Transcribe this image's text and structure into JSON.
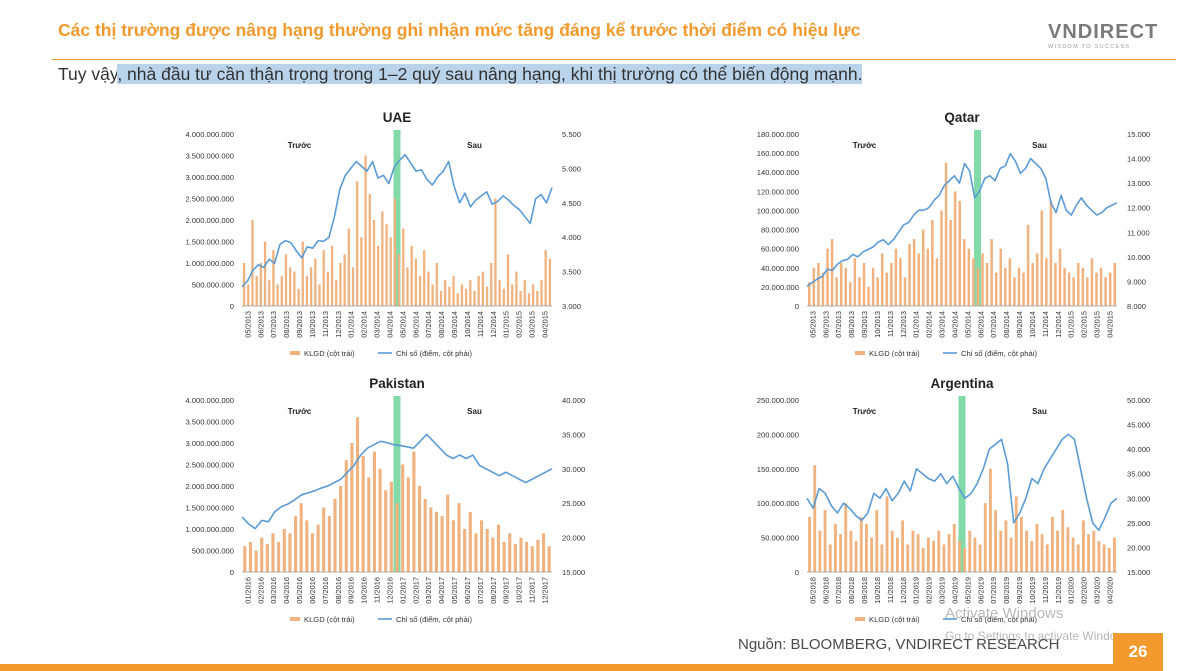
{
  "header": {
    "title": "Các thị trường được nâng hạng thường ghi nhận mức tăng đáng kể trước thời điểm có hiệu lực",
    "logo_main": "VNDIRECT",
    "logo_sub": "WISDOM TO SUCCESS"
  },
  "intro": {
    "prefix": "Tuy vậy",
    "highlighted": ", nhà đầu tư cần thận trọng trong 1–2 quý sau nâng hạng, khi thị trường có thể biến động mạnh."
  },
  "colors": {
    "accent": "#f29a2e",
    "bar": "#f0b27e",
    "line": "#5b9bd5",
    "band": "#6cd49a",
    "highlight": "#b9d3ea"
  },
  "footer": {
    "source": "Nguồn: BLOOMBERG, VNDIRECT RESEARCH",
    "page_number": "26",
    "watermark_line1": "Activate Windows",
    "watermark_line2": "Go to Settings to activate Windows."
  },
  "chart_data": [
    {
      "type": "bar+line",
      "title": "UAE",
      "left_axis": {
        "min": 0,
        "max": 4000000000,
        "step": 500000000,
        "ticks": [
          "0",
          "500.000.000",
          "1.000.000.000",
          "1.500.000.000",
          "2.000.000.000",
          "2.500.000.000",
          "3.000.000.000",
          "3.500.000.000",
          "4.000.000.000"
        ]
      },
      "right_axis": {
        "min": 3000,
        "max": 5500,
        "step": 500,
        "ticks": [
          "3.000",
          "3.500",
          "4.000",
          "4.500",
          "5.000",
          "5.500"
        ]
      },
      "x_ticks": [
        "05/2013",
        "06/2013",
        "07/2013",
        "08/2013",
        "09/2013",
        "10/2013",
        "11/2013",
        "12/2013",
        "01/2014",
        "02/2014",
        "03/2014",
        "04/2014",
        "05/2014",
        "06/2014",
        "07/2014",
        "08/2014",
        "09/2014",
        "10/2014",
        "11/2014",
        "12/2014",
        "01/2015",
        "02/2015",
        "03/2015",
        "04/2015"
      ],
      "before_label": "Trước",
      "after_label": "Sau",
      "event_position": 0.5,
      "legend": [
        "KLGD (cột trái)",
        "Chỉ số (điểm, cột phải)"
      ],
      "bars": [
        1000000000,
        500000000,
        2000000000,
        700000000,
        1000000000,
        1500000000,
        600000000,
        1300000000,
        500000000,
        700000000,
        1200000000,
        900000000,
        800000000,
        400000000,
        1500000000,
        700000000,
        900000000,
        1100000000,
        500000000,
        1300000000,
        800000000,
        1400000000,
        600000000,
        1000000000,
        1200000000,
        1800000000,
        900000000,
        2900000000,
        1600000000,
        3500000000,
        2600000000,
        2000000000,
        1400000000,
        2200000000,
        1900000000,
        1600000000,
        2500000000,
        1200000000,
        1800000000,
        900000000,
        1400000000,
        1100000000,
        700000000,
        1300000000,
        800000000,
        500000000,
        1000000000,
        350000000,
        600000000,
        450000000,
        700000000,
        300000000,
        500000000,
        400000000,
        600000000,
        350000000,
        700000000,
        800000000,
        450000000,
        1000000000,
        2500000000,
        600000000,
        400000000,
        1200000000,
        500000000,
        800000000,
        350000000,
        600000000,
        300000000,
        500000000,
        350000000,
        600000000,
        1300000000,
        1100000000
      ],
      "line": [
        3280,
        3360,
        3520,
        3600,
        3560,
        3680,
        3620,
        3900,
        3950,
        3920,
        3800,
        3700,
        3860,
        3840,
        3950,
        3940,
        4000,
        4300,
        4700,
        4900,
        5000,
        5100,
        5030,
        4960,
        5100,
        4860,
        4900,
        4780,
        5020,
        5120,
        5200,
        5080,
        4960,
        4980,
        4840,
        4760,
        4880,
        4960,
        5100,
        4740,
        4500,
        4640,
        4440,
        4540,
        4600,
        4660,
        4480,
        4520,
        4600,
        4540,
        4460,
        4400,
        4300,
        4200,
        4560,
        4620,
        4500,
        4720
      ],
      "event_index": 28
    },
    {
      "type": "bar+line",
      "title": "Qatar",
      "left_axis": {
        "min": 0,
        "max": 180000000,
        "step": 20000000,
        "ticks": [
          "0",
          "20.000.000",
          "40.000.000",
          "60.000.000",
          "80.000.000",
          "100.000.000",
          "120.000.000",
          "140.000.000",
          "160.000.000",
          "180.000.000"
        ]
      },
      "right_axis": {
        "min": 8000,
        "max": 15000,
        "step": 1000,
        "ticks": [
          "8.000",
          "9.000",
          "10.000",
          "11.000",
          "12.000",
          "13.000",
          "14.000",
          "15.000"
        ]
      },
      "x_ticks": [
        "05/2013",
        "06/2013",
        "07/2013",
        "08/2013",
        "09/2013",
        "10/2013",
        "11/2013",
        "12/2013",
        "01/2014",
        "02/2014",
        "03/2014",
        "04/2014",
        "05/2014",
        "06/2014",
        "07/2014",
        "08/2014",
        "09/2014",
        "10/2014",
        "11/2014",
        "12/2014",
        "01/2015",
        "02/2015",
        "03/2015",
        "04/2015"
      ],
      "before_label": "Trước",
      "after_label": "Sau",
      "event_position": 0.55,
      "legend": [
        "KLGD (cột trái)",
        "Chỉ số (điểm, cột phải)"
      ],
      "bars": [
        25000000,
        40000000,
        45000000,
        35000000,
        60000000,
        70000000,
        30000000,
        45000000,
        40000000,
        25000000,
        50000000,
        30000000,
        45000000,
        20000000,
        40000000,
        30000000,
        55000000,
        35000000,
        45000000,
        60000000,
        50000000,
        30000000,
        65000000,
        70000000,
        55000000,
        80000000,
        60000000,
        90000000,
        50000000,
        100000000,
        150000000,
        90000000,
        120000000,
        110000000,
        70000000,
        60000000,
        50000000,
        40000000,
        55000000,
        45000000,
        70000000,
        35000000,
        60000000,
        40000000,
        50000000,
        30000000,
        40000000,
        35000000,
        85000000,
        45000000,
        55000000,
        100000000,
        50000000,
        110000000,
        45000000,
        60000000,
        40000000,
        35000000,
        30000000,
        45000000,
        40000000,
        30000000,
        50000000,
        35000000,
        40000000,
        30000000,
        35000000,
        45000000
      ],
      "line": [
        8800,
        8950,
        9100,
        9200,
        9500,
        9450,
        9700,
        9850,
        9900,
        10100,
        10000,
        10200,
        10300,
        10400,
        10600,
        10700,
        10500,
        10700,
        11000,
        11300,
        11400,
        11700,
        11900,
        11900,
        12000,
        12300,
        12500,
        12900,
        13100,
        13300,
        13000,
        13800,
        13500,
        12400,
        12700,
        13200,
        13300,
        13100,
        13600,
        13700,
        14200,
        13900,
        13400,
        13600,
        14000,
        13800,
        13600,
        13200,
        12200,
        11800,
        12500,
        11900,
        11700,
        12100,
        12400,
        12100,
        11900,
        11700,
        11800,
        12000,
        12100,
        12200
      ]
    },
    {
      "type": "bar+line",
      "title": "Pakistan",
      "left_axis": {
        "min": 0,
        "max": 4000000000,
        "step": 500000000,
        "ticks": [
          "0",
          "500.000.000",
          "1.000.000.000",
          "1.500.000.000",
          "2.000.000.000",
          "2.500.000.000",
          "3.000.000.000",
          "3.500.000.000",
          "4.000.000.000"
        ]
      },
      "right_axis": {
        "min": 15000,
        "max": 40000,
        "step": 5000,
        "ticks": [
          "15.000",
          "20.000",
          "25.000",
          "30.000",
          "35.000",
          "40.000"
        ]
      },
      "x_ticks": [
        "01/2016",
        "02/2016",
        "03/2016",
        "04/2016",
        "05/2016",
        "06/2016",
        "07/2016",
        "08/2016",
        "09/2016",
        "10/2016",
        "11/2016",
        "12/2016",
        "01/2017",
        "02/2017",
        "03/2017",
        "04/2017",
        "05/2017",
        "06/2017",
        "07/2017",
        "08/2017",
        "09/2017",
        "10/2017",
        "11/2017",
        "12/2017"
      ],
      "before_label": "Trước",
      "after_label": "Sau",
      "event_position": 0.5,
      "legend": [
        "KLGD (cột trái)",
        "Chỉ số (điểm, cột phải)"
      ],
      "bars": [
        600000000,
        700000000,
        500000000,
        800000000,
        650000000,
        900000000,
        700000000,
        1000000000,
        900000000,
        1300000000,
        1600000000,
        1200000000,
        900000000,
        1100000000,
        1500000000,
        1300000000,
        1700000000,
        2000000000,
        2600000000,
        3000000000,
        3600000000,
        2700000000,
        2200000000,
        2800000000,
        2400000000,
        1900000000,
        2100000000,
        1600000000,
        2500000000,
        2200000000,
        2800000000,
        2000000000,
        1700000000,
        1500000000,
        1400000000,
        1300000000,
        1800000000,
        1200000000,
        1600000000,
        1000000000,
        1400000000,
        900000000,
        1200000000,
        1000000000,
        800000000,
        1100000000,
        700000000,
        900000000,
        650000000,
        800000000,
        700000000,
        600000000,
        750000000,
        900000000,
        600000000
      ],
      "line": [
        23000,
        22000,
        21300,
        22500,
        22300,
        23800,
        24500,
        24900,
        25500,
        26200,
        26500,
        26800,
        27200,
        27500,
        28000,
        28500,
        29500,
        30500,
        32000,
        33000,
        33500,
        34000,
        33800,
        33500,
        33400,
        33200,
        33000,
        34000,
        35000,
        34000,
        33000,
        32000,
        31500,
        32000,
        31500,
        32000,
        30500,
        30000,
        29500,
        29000,
        29500,
        29000,
        28500,
        28000,
        28500,
        29000,
        29500,
        30000
      ]
    },
    {
      "type": "bar+line",
      "title": "Argentina",
      "left_axis": {
        "min": 0,
        "max": 250000000,
        "step": 50000000,
        "ticks": [
          "0",
          "50.000.000",
          "100.000.000",
          "150.000.000",
          "200.000.000",
          "250.000.000"
        ]
      },
      "right_axis": {
        "min": 15000,
        "max": 50000,
        "step": 5000,
        "ticks": [
          "15.000",
          "20.000",
          "25.000",
          "30.000",
          "35.000",
          "40.000",
          "45.000",
          "50.000"
        ]
      },
      "x_ticks": [
        "05/2018",
        "06/2018",
        "07/2018",
        "08/2018",
        "09/2018",
        "10/2018",
        "11/2018",
        "12/2018",
        "01/2019",
        "02/2019",
        "03/2019",
        "04/2019",
        "05/2019",
        "06/2019",
        "07/2019",
        "08/2019",
        "09/2019",
        "10/2019",
        "11/2019",
        "12/2019",
        "01/2020",
        "02/2020",
        "03/2020",
        "04/2020"
      ],
      "before_label": "Trước",
      "after_label": "Sau",
      "event_position": 0.5,
      "legend": [
        "KLGD (cột trái)",
        "Chỉ số (điểm, cột phải)"
      ],
      "bars": [
        80000000,
        155000000,
        60000000,
        90000000,
        40000000,
        70000000,
        55000000,
        100000000,
        60000000,
        45000000,
        80000000,
        70000000,
        50000000,
        90000000,
        40000000,
        110000000,
        60000000,
        50000000,
        75000000,
        40000000,
        60000000,
        55000000,
        35000000,
        50000000,
        45000000,
        60000000,
        40000000,
        55000000,
        70000000,
        45000000,
        35000000,
        60000000,
        50000000,
        40000000,
        100000000,
        150000000,
        90000000,
        60000000,
        75000000,
        50000000,
        110000000,
        80000000,
        60000000,
        45000000,
        70000000,
        55000000,
        40000000,
        80000000,
        60000000,
        90000000,
        65000000,
        50000000,
        40000000,
        75000000,
        55000000,
        60000000,
        45000000,
        40000000,
        35000000,
        50000000
      ],
      "line": [
        30000,
        28000,
        32000,
        31000,
        28500,
        27000,
        29000,
        28000,
        26500,
        25500,
        27000,
        31000,
        30000,
        32000,
        29500,
        31000,
        33500,
        31500,
        36000,
        35000,
        34000,
        33500,
        35000,
        33000,
        34500,
        32000,
        30000,
        31000,
        33000,
        36000,
        40000,
        41000,
        42000,
        37000,
        25000,
        27000,
        30000,
        34000,
        33000,
        36000,
        38000,
        40000,
        42000,
        43000,
        42000,
        36000,
        30000,
        25000,
        23500,
        26000,
        29000,
        30000
      ]
    }
  ]
}
